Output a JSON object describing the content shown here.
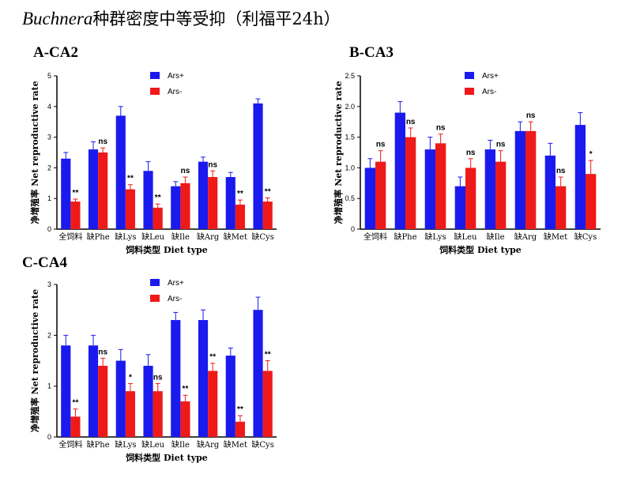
{
  "title": {
    "italic": "Buchnera",
    "rest": "种群密度中等受抑（利福平24h）"
  },
  "chart_data": [
    {
      "type": "bar",
      "panel": "A-CA2",
      "ylabel": "净增殖率 Net reproductive rate",
      "xlabel": "饲料类型  Diet type",
      "categories": [
        "全饲料",
        "缺Phe",
        "缺Lys",
        "缺Leu",
        "缺Ile",
        "缺Arg",
        "缺Met",
        "缺Cys"
      ],
      "ylim": [
        0,
        5
      ],
      "yticks": [
        0,
        1,
        2,
        3,
        4,
        5
      ],
      "legend_position": "top-center",
      "series": [
        {
          "name": "Ars+",
          "color": "#1a1aee",
          "values": [
            2.3,
            2.6,
            3.7,
            1.9,
            1.4,
            2.2,
            1.7,
            4.1
          ],
          "errors": [
            0.2,
            0.25,
            0.3,
            0.3,
            0.15,
            0.15,
            0.15,
            0.15
          ]
        },
        {
          "name": "Ars-",
          "color": "#ee1a1a",
          "values": [
            0.9,
            2.5,
            1.3,
            0.7,
            1.5,
            1.7,
            0.8,
            0.9
          ],
          "errors": [
            0.08,
            0.15,
            0.15,
            0.12,
            0.2,
            0.2,
            0.15,
            0.12
          ]
        }
      ],
      "significance": [
        "**",
        "ns",
        "**",
        "**",
        "ns",
        "ns",
        "**",
        "**"
      ]
    },
    {
      "type": "bar",
      "panel": "B-CA3",
      "ylabel": "净增殖率 Net reproductive rate",
      "xlabel": "饲料类型  Diet type",
      "categories": [
        "全饲料",
        "缺Phe",
        "缺Lys",
        "缺Leu",
        "缺Ile",
        "缺Arg",
        "缺Met",
        "缺Cys"
      ],
      "ylim": [
        0,
        2.5
      ],
      "yticks": [
        0,
        0.5,
        1.0,
        1.5,
        2.0,
        2.5
      ],
      "legend_position": "top-center",
      "series": [
        {
          "name": "Ars+",
          "color": "#1a1aee",
          "values": [
            1.0,
            1.9,
            1.3,
            0.7,
            1.3,
            1.6,
            1.2,
            1.7
          ],
          "errors": [
            0.15,
            0.18,
            0.2,
            0.15,
            0.15,
            0.15,
            0.2,
            0.2
          ]
        },
        {
          "name": "Ars-",
          "color": "#ee1a1a",
          "values": [
            1.1,
            1.5,
            1.4,
            1.0,
            1.1,
            1.6,
            0.7,
            0.9
          ],
          "errors": [
            0.18,
            0.15,
            0.15,
            0.15,
            0.18,
            0.15,
            0.15,
            0.22
          ]
        }
      ],
      "significance": [
        "ns",
        "ns",
        "ns",
        "ns",
        "ns",
        "ns",
        "ns",
        "*"
      ]
    },
    {
      "type": "bar",
      "panel": "C-CA4",
      "ylabel": "净增殖率 Net reproductive rate",
      "xlabel": "饲料类型  Diet type",
      "categories": [
        "全饲料",
        "缺Phe",
        "缺Lys",
        "缺Leu",
        "缺Ile",
        "缺Arg",
        "缺Met",
        "缺Cys"
      ],
      "ylim": [
        0,
        3
      ],
      "yticks": [
        0,
        1,
        2,
        3
      ],
      "legend_position": "top-center",
      "series": [
        {
          "name": "Ars+",
          "color": "#1a1aee",
          "values": [
            1.8,
            1.8,
            1.5,
            1.4,
            2.3,
            2.3,
            1.6,
            2.5
          ],
          "errors": [
            0.2,
            0.2,
            0.22,
            0.22,
            0.15,
            0.2,
            0.15,
            0.25
          ]
        },
        {
          "name": "Ars-",
          "color": "#ee1a1a",
          "values": [
            0.4,
            1.4,
            0.9,
            0.9,
            0.7,
            1.3,
            0.3,
            1.3
          ],
          "errors": [
            0.15,
            0.15,
            0.15,
            0.15,
            0.12,
            0.15,
            0.12,
            0.2
          ]
        }
      ],
      "significance": [
        "**",
        "ns",
        "*",
        "ns",
        "**",
        "**",
        "**",
        "**"
      ]
    }
  ]
}
